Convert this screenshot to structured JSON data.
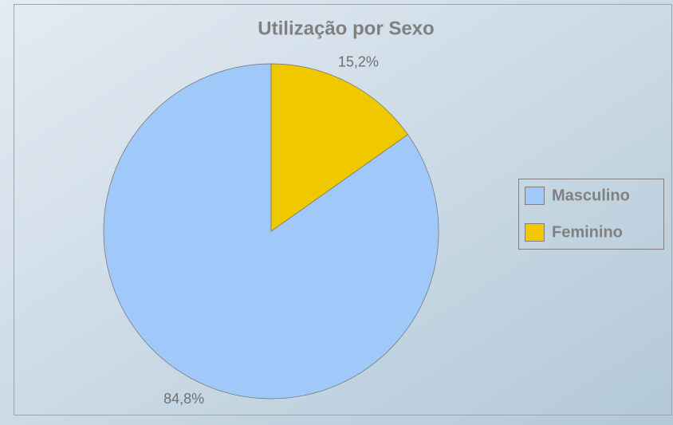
{
  "chart_data": {
    "type": "pie",
    "title": "Utilização por Sexo",
    "categories": [
      "Masculino",
      "Feminino"
    ],
    "values": [
      84.8,
      15.2
    ],
    "value_labels": [
      "84,8%",
      "15,2%"
    ],
    "colors": [
      "#a0c8f8",
      "#f0c800"
    ],
    "legend": "right"
  }
}
